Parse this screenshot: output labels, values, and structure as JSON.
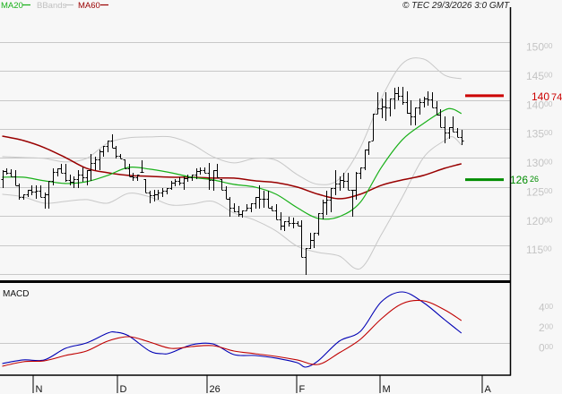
{
  "legend": [
    {
      "label": "MA20",
      "color": "#19b019"
    },
    {
      "label": "BBands",
      "color": "#c0c0c0"
    },
    {
      "label": "MA60",
      "color": "#990000"
    }
  ],
  "copyright": "© TEC 29/3/2026 3:0 GMT",
  "price_axis": [
    {
      "int": "150",
      "dec": "00"
    },
    {
      "int": "145",
      "dec": "00"
    },
    {
      "int": "140",
      "dec": "00"
    },
    {
      "int": "135",
      "dec": "00"
    },
    {
      "int": "130",
      "dec": "00"
    },
    {
      "int": "125",
      "dec": "00"
    },
    {
      "int": "120",
      "dec": "00"
    },
    {
      "int": "115",
      "dec": "00"
    }
  ],
  "markers": {
    "resistance": {
      "int": "140",
      "dec": "74",
      "color": "#cc0000"
    },
    "support": {
      "int": "126",
      "dec": "26",
      "color": "#008c00"
    }
  },
  "macd": {
    "label": "MACD",
    "axis": [
      {
        "int": "4",
        "dec": "00"
      },
      {
        "int": "2",
        "dec": "00"
      },
      {
        "int": "0",
        "dec": "00"
      }
    ]
  },
  "x_axis": [
    {
      "label": "N"
    },
    {
      "label": "D"
    },
    {
      "label": "26"
    },
    {
      "label": "F"
    },
    {
      "label": "M"
    },
    {
      "label": "A"
    }
  ],
  "chart_data": [
    {
      "type": "ohlc",
      "title": "",
      "xlabel": "",
      "ylabel": "",
      "legend": [
        "MA20",
        "BBands",
        "MA60"
      ],
      "legend_position": "top-left",
      "grid": true,
      "ylim": [
        108.9,
        156.02
      ],
      "yticks": [
        115,
        120,
        125,
        130,
        135,
        140,
        145,
        150
      ],
      "gridlines": [
        110,
        115,
        120,
        125,
        130,
        135,
        140,
        145,
        150
      ],
      "x_ticks": [
        {
          "label": "N",
          "index": 7.3
        },
        {
          "label": "D",
          "index": 27.3
        },
        {
          "label": "26",
          "index": 48.6
        },
        {
          "label": "F",
          "index": 69.9
        },
        {
          "label": "M",
          "index": 89.7
        },
        {
          "label": "A",
          "index": 113.9
        }
      ],
      "bars_fields": [
        "high",
        "low"
      ],
      "bars": [
        [
          127.92,
          124.83
        ],
        [
          128.22,
          127.14
        ],
        [
          128.07,
          126.83
        ],
        [
          127.92,
          125.29
        ],
        [
          125.6,
          122.82
        ],
        [
          123.75,
          122.82
        ],
        [
          124.52,
          123.28
        ],
        [
          125.29,
          123.59
        ],
        [
          125.29,
          122.97
        ],
        [
          125.29,
          123.28
        ],
        [
          124.05,
          121.27
        ],
        [
          126.06,
          121.27
        ],
        [
          128.22,
          125.29
        ],
        [
          128.22,
          126.83
        ],
        [
          129.0,
          127.45
        ],
        [
          129.0,
          125.91
        ],
        [
          127.14,
          125.29
        ],
        [
          126.83,
          124.83
        ],
        [
          127.92,
          124.83
        ],
        [
          128.38,
          125.91
        ],
        [
          127.92,
          125.29
        ],
        [
          130.7,
          126.06
        ],
        [
          130.23,
          127.92
        ],
        [
          131.47,
          127.92
        ],
        [
          132.09,
          130.23
        ],
        [
          133.01,
          131.0
        ],
        [
          134.09,
          131.78
        ],
        [
          132.09,
          129.92
        ],
        [
          130.7,
          129.92
        ],
        [
          129.77,
          128.22
        ],
        [
          129.0,
          126.83
        ],
        [
          127.45,
          126.06
        ],
        [
          127.14,
          126.06
        ],
        [
          129.61,
          127.61
        ],
        [
          126.37,
          124.05
        ],
        [
          124.36,
          122.2
        ],
        [
          124.52,
          122.51
        ],
        [
          124.52,
          122.82
        ],
        [
          124.83,
          123.28
        ],
        [
          124.83,
          123.75
        ],
        [
          126.06,
          124.52
        ],
        [
          126.37,
          125.14
        ],
        [
          126.68,
          125.29
        ],
        [
          126.83,
          124.52
        ],
        [
          127.14,
          125.91
        ],
        [
          127.14,
          126.06
        ],
        [
          128.22,
          126.37
        ],
        [
          128.38,
          127.14
        ],
        [
          128.38,
          127.45
        ],
        [
          129.15,
          124.52
        ],
        [
          127.92,
          124.36
        ],
        [
          129.0,
          126.68
        ],
        [
          126.37,
          124.52
        ],
        [
          125.14,
          122.97
        ],
        [
          123.28,
          119.89
        ],
        [
          122.2,
          120.66
        ],
        [
          121.74,
          119.89
        ],
        [
          120.97,
          119.73
        ],
        [
          122.05,
          120.97
        ],
        [
          122.2,
          120.66
        ],
        [
          123.28,
          121.27
        ],
        [
          125.29,
          121.27
        ],
        [
          124.36,
          121.43
        ],
        [
          124.36,
          121.43
        ],
        [
          121.74,
          120.97
        ],
        [
          122.05,
          119.42
        ],
        [
          120.66,
          117.57
        ],
        [
          119.11,
          117.41
        ],
        [
          119.89,
          118.19
        ],
        [
          119.73,
          117.88
        ],
        [
          119.11,
          118.34
        ],
        [
          119.27,
          112.94
        ],
        [
          114.48,
          109.85
        ],
        [
          117.11,
          114.33
        ],
        [
          117.11,
          114.48
        ],
        [
          120.5,
          116.64
        ],
        [
          122.82,
          119.42
        ],
        [
          124.36,
          120.19
        ],
        [
          124.83,
          120.66
        ],
        [
          127.92,
          123.59
        ],
        [
          126.83,
          124.36
        ],
        [
          127.45,
          124.83
        ],
        [
          127.45,
          124.52
        ],
        [
          124.52,
          119.89
        ],
        [
          127.61,
          122.82
        ],
        [
          128.38,
          126.37
        ],
        [
          131.47,
          127.92
        ],
        [
          132.86,
          130.54
        ],
        [
          137.65,
          133.01
        ],
        [
          141.35,
          137.65
        ],
        [
          140.27,
          136.87
        ],
        [
          141.35,
          136.41
        ],
        [
          140.27,
          137.18
        ],
        [
          142.12,
          138.42
        ],
        [
          142.28,
          139.96
        ],
        [
          142.28,
          139.19
        ],
        [
          141.51,
          137.65
        ],
        [
          139.96,
          135.64
        ],
        [
          138.73,
          135.64
        ],
        [
          140.27,
          137.49
        ],
        [
          140.58,
          138.73
        ],
        [
          141.51,
          139.04
        ],
        [
          141.35,
          138.73
        ],
        [
          139.81,
          137.49
        ],
        [
          138.42,
          135.33
        ],
        [
          137.18,
          132.55
        ],
        [
          135.33,
          133.32
        ],
        [
          137.18,
          134.56
        ],
        [
          135.17,
          133.63
        ],
        [
          134.87,
          132.24
        ]
      ],
      "series": [
        {
          "name": "BBands upper",
          "color": "#c8c8c8",
          "width": 1,
          "points": [
            [
              0,
              130.23
            ],
            [
              5,
              130.08
            ],
            [
              10,
              129.92
            ],
            [
              15,
              129.31
            ],
            [
              20,
              129.92
            ],
            [
              25,
              132.55
            ],
            [
              30,
              133.48
            ],
            [
              35,
              133.63
            ],
            [
              40,
              133.63
            ],
            [
              45,
              132.39
            ],
            [
              50,
              130.23
            ],
            [
              55,
              129.15
            ],
            [
              60,
              129.92
            ],
            [
              65,
              129.61
            ],
            [
              70,
              127.14
            ],
            [
              75,
              125.44
            ],
            [
              80,
              126.37
            ],
            [
              85,
              131.78
            ],
            [
              90,
              140.27
            ],
            [
              95,
              146.29
            ],
            [
              100,
              147.07
            ],
            [
              105,
              144.29
            ],
            [
              109,
              143.67
            ]
          ]
        },
        {
          "name": "BBands lower",
          "color": "#c8c8c8",
          "width": 1,
          "points": [
            [
              0,
              123.75
            ],
            [
              5,
              123.28
            ],
            [
              10,
              122.2
            ],
            [
              15,
              122.51
            ],
            [
              20,
              122.82
            ],
            [
              25,
              122.2
            ],
            [
              30,
              123.9
            ],
            [
              35,
              123.28
            ],
            [
              40,
              121.89
            ],
            [
              45,
              122.05
            ],
            [
              50,
              122.51
            ],
            [
              55,
              120.5
            ],
            [
              60,
              119.27
            ],
            [
              65,
              117.41
            ],
            [
              70,
              114.79
            ],
            [
              75,
              113.71
            ],
            [
              80,
              113.09
            ],
            [
              85,
              110.93
            ],
            [
              90,
              116.8
            ],
            [
              95,
              123.28
            ],
            [
              100,
              130.08
            ],
            [
              105,
              133.01
            ],
            [
              107,
              133.63
            ],
            [
              109,
              132.24
            ]
          ]
        },
        {
          "name": "MA60",
          "color": "#990000",
          "width": 1.5,
          "points": [
            [
              0,
              133.78
            ],
            [
              5,
              133.01
            ],
            [
              10,
              131.78
            ],
            [
              15,
              130.08
            ],
            [
              20,
              128.22
            ],
            [
              25,
              127.45
            ],
            [
              30,
              126.99
            ],
            [
              35,
              126.83
            ],
            [
              40,
              126.68
            ],
            [
              45,
              126.68
            ],
            [
              50,
              126.53
            ],
            [
              55,
              126.53
            ],
            [
              60,
              126.06
            ],
            [
              65,
              125.75
            ],
            [
              70,
              124.98
            ],
            [
              75,
              123.75
            ],
            [
              80,
              122.97
            ],
            [
              85,
              123.75
            ],
            [
              90,
              125.29
            ],
            [
              95,
              126.22
            ],
            [
              100,
              126.99
            ],
            [
              105,
              128.22
            ],
            [
              109,
              129.0
            ]
          ]
        },
        {
          "name": "MA20",
          "color": "#19b019",
          "width": 1.2,
          "points": [
            [
              0,
              126.68
            ],
            [
              5,
              126.68
            ],
            [
              10,
              126.06
            ],
            [
              15,
              125.6
            ],
            [
              20,
              125.91
            ],
            [
              25,
              126.99
            ],
            [
              30,
              128.38
            ],
            [
              35,
              128.07
            ],
            [
              40,
              127.45
            ],
            [
              45,
              126.68
            ],
            [
              50,
              126.22
            ],
            [
              55,
              125.44
            ],
            [
              60,
              124.98
            ],
            [
              65,
              123.75
            ],
            [
              70,
              121.43
            ],
            [
              75,
              119.58
            ],
            [
              80,
              119.89
            ],
            [
              85,
              122.36
            ],
            [
              90,
              128.38
            ],
            [
              95,
              133.17
            ],
            [
              100,
              135.95
            ],
            [
              105,
              138.26
            ],
            [
              107,
              138.42
            ],
            [
              109,
              137.65
            ]
          ]
        }
      ],
      "hlines": [
        {
          "name": "resistance",
          "value": 140.74,
          "label": "140.74",
          "color": "#cc0000"
        },
        {
          "name": "support",
          "value": 126.26,
          "label": "126.26",
          "color": "#008c00"
        }
      ]
    },
    {
      "type": "line",
      "title": "MACD",
      "xlabel": "",
      "ylabel": "",
      "grid": true,
      "ylim": [
        -323,
        601
      ],
      "yticks": [
        0,
        200,
        400
      ],
      "gridlines": [
        0
      ],
      "series": [
        {
          "name": "MACD",
          "color": "#0000b4",
          "width": 1.1,
          "points": [
            [
              0,
              -206
            ],
            [
              5,
              -170
            ],
            [
              10,
              -170
            ],
            [
              15,
              -54
            ],
            [
              20,
              0
            ],
            [
              25,
              99
            ],
            [
              27,
              108
            ],
            [
              30,
              72
            ],
            [
              35,
              -81
            ],
            [
              38,
              -108
            ],
            [
              40,
              -99
            ],
            [
              45,
              -18
            ],
            [
              50,
              -9
            ],
            [
              55,
              -117
            ],
            [
              60,
              -126
            ],
            [
              65,
              -152
            ],
            [
              70,
              -197
            ],
            [
              72,
              -242
            ],
            [
              75,
              -179
            ],
            [
              80,
              18
            ],
            [
              85,
              116
            ],
            [
              90,
              413
            ],
            [
              95,
              511
            ],
            [
              100,
              404
            ],
            [
              105,
              233
            ],
            [
              109,
              99
            ]
          ]
        },
        {
          "name": "Signal",
          "color": "#c00000",
          "width": 1.1,
          "points": [
            [
              0,
              -233
            ],
            [
              5,
              -188
            ],
            [
              10,
              -179
            ],
            [
              15,
              -126
            ],
            [
              20,
              -81
            ],
            [
              25,
              18
            ],
            [
              30,
              63
            ],
            [
              35,
              9
            ],
            [
              40,
              -54
            ],
            [
              45,
              -36
            ],
            [
              50,
              -27
            ],
            [
              55,
              -81
            ],
            [
              60,
              -108
            ],
            [
              65,
              -135
            ],
            [
              70,
              -170
            ],
            [
              75,
              -215
            ],
            [
              80,
              -99
            ],
            [
              85,
              36
            ],
            [
              90,
              242
            ],
            [
              95,
              395
            ],
            [
              100,
              422
            ],
            [
              105,
              332
            ],
            [
              109,
              224
            ]
          ]
        }
      ]
    }
  ]
}
